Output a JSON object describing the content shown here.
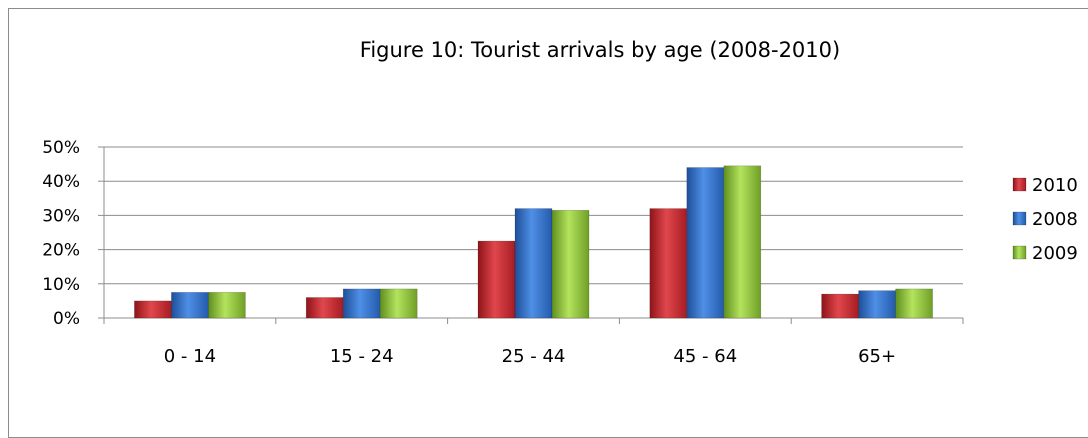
{
  "chart_data": {
    "type": "bar",
    "title": "Figure 10: Tourist arrivals by age (2008-2010)",
    "xlabel": "",
    "ylabel": "",
    "categories": [
      "0 - 14",
      "15 - 24",
      "25 - 44",
      "45 - 64",
      "65+"
    ],
    "series": [
      {
        "name": "2010",
        "color": "#c0262d",
        "values": [
          5,
          6,
          22.5,
          32,
          7
        ]
      },
      {
        "name": "2008",
        "color": "#2f6fc4",
        "values": [
          7.5,
          8.5,
          32,
          44,
          8
        ]
      },
      {
        "name": "2009",
        "color": "#8fc43c",
        "values": [
          7.5,
          8.5,
          31.5,
          44.5,
          8.5
        ]
      }
    ],
    "ylim": [
      0,
      50
    ],
    "yticks": [
      "0%",
      "10%",
      "20%",
      "30%",
      "40%",
      "50%"
    ],
    "grid": true,
    "legend_position": "right"
  }
}
